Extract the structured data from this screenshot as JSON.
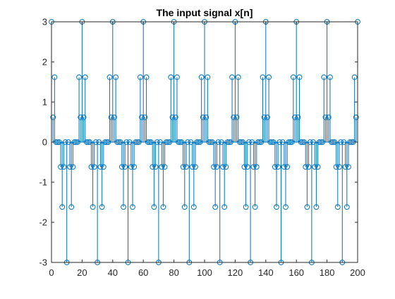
{
  "chart_data": {
    "type": "stem",
    "title": "The input signal x[n]",
    "xlabel": "",
    "ylabel": "",
    "xlim": [
      0,
      200
    ],
    "ylim": [
      -3,
      3
    ],
    "xticks": [
      0,
      20,
      40,
      60,
      80,
      100,
      120,
      140,
      160,
      180,
      200
    ],
    "yticks": [
      -3,
      -2,
      -1,
      0,
      1,
      2,
      3
    ],
    "grid": false,
    "series_color": "#0072BD",
    "period": 20,
    "one_period_values": [
      3,
      0.618,
      1.618,
      0,
      0,
      0,
      -0.618,
      -1.618,
      -0.618,
      0,
      -3,
      0,
      -0.618,
      -1.618,
      -0.618,
      0,
      0,
      0,
      1.618,
      0.618
    ],
    "n": [
      0,
      200
    ]
  },
  "axes": {
    "frame_color": "#262626",
    "background": "#ffffff"
  }
}
